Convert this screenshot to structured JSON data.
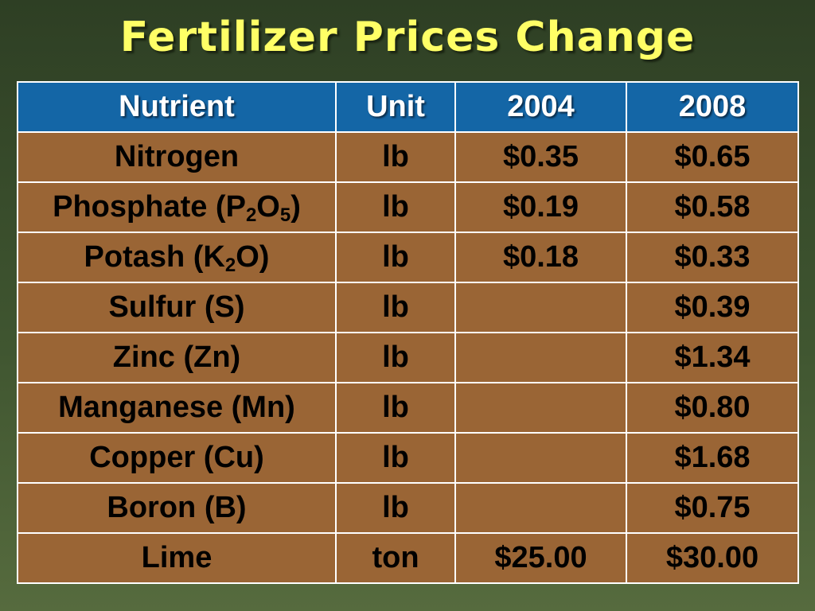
{
  "title": "Fertilizer Prices Change",
  "table": {
    "headers": [
      "Nutrient",
      "Unit",
      "2004",
      "2008"
    ],
    "rows": [
      {
        "nutrient": {
          "pre": "Nitrogen",
          "sub1": "",
          "mid": "",
          "sub2": "",
          "post": ""
        },
        "unit": "lb",
        "y2004": "$0.35",
        "y2008": "$0.65"
      },
      {
        "nutrient": {
          "pre": "Phosphate (P",
          "sub1": "2",
          "mid": "O",
          "sub2": "5",
          "post": ")"
        },
        "unit": "lb",
        "y2004": "$0.19",
        "y2008": "$0.58"
      },
      {
        "nutrient": {
          "pre": "Potash (K",
          "sub1": "2",
          "mid": "O)",
          "sub2": "",
          "post": ""
        },
        "unit": "lb",
        "y2004": "$0.18",
        "y2008": "$0.33"
      },
      {
        "nutrient": {
          "pre": "Sulfur (S)",
          "sub1": "",
          "mid": "",
          "sub2": "",
          "post": ""
        },
        "unit": "lb",
        "y2004": "",
        "y2008": "$0.39"
      },
      {
        "nutrient": {
          "pre": "Zinc (Zn)",
          "sub1": "",
          "mid": "",
          "sub2": "",
          "post": ""
        },
        "unit": "lb",
        "y2004": "",
        "y2008": "$1.34"
      },
      {
        "nutrient": {
          "pre": "Manganese (Mn)",
          "sub1": "",
          "mid": "",
          "sub2": "",
          "post": ""
        },
        "unit": "lb",
        "y2004": "",
        "y2008": "$0.80"
      },
      {
        "nutrient": {
          "pre": "Copper (Cu)",
          "sub1": "",
          "mid": "",
          "sub2": "",
          "post": ""
        },
        "unit": "lb",
        "y2004": "",
        "y2008": "$1.68"
      },
      {
        "nutrient": {
          "pre": "Boron (B)",
          "sub1": "",
          "mid": "",
          "sub2": "",
          "post": ""
        },
        "unit": "lb",
        "y2004": "",
        "y2008": "$0.75"
      },
      {
        "nutrient": {
          "pre": "Lime",
          "sub1": "",
          "mid": "",
          "sub2": "",
          "post": ""
        },
        "unit": "ton",
        "y2004": "$25.00",
        "y2008": "$30.00"
      }
    ]
  },
  "colors": {
    "title": "#ffff66",
    "header_bg": "#1466a6",
    "cell_bg": "#9a6535",
    "grid": "#ffffff"
  }
}
